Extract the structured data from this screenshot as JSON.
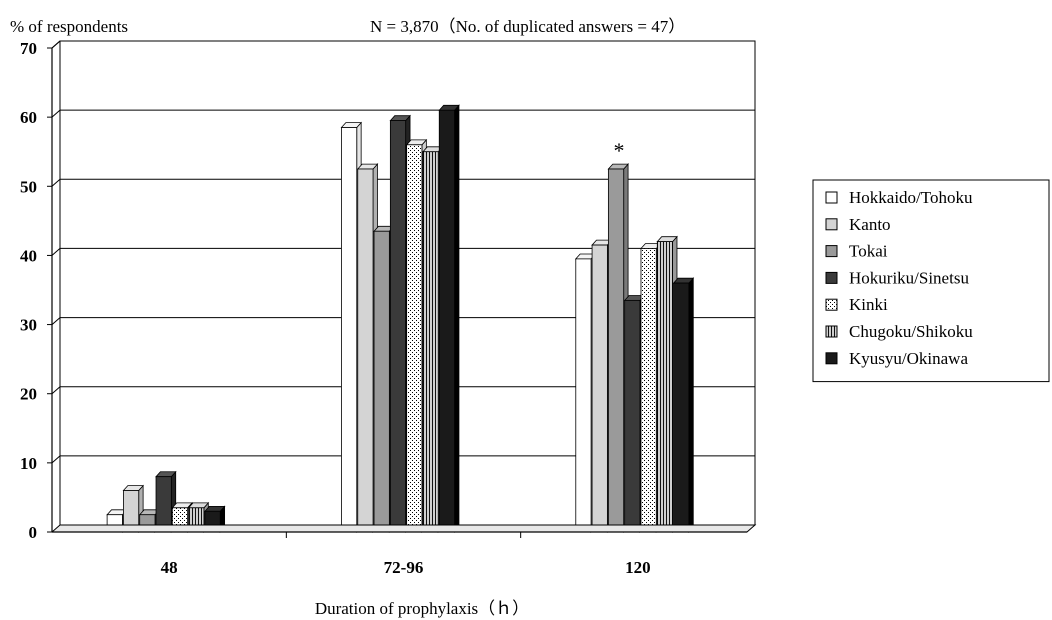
{
  "chart_data": {
    "type": "bar",
    "ylabel": "% of respondents",
    "annotation": "N = 3,870（No. of duplicated answers = 47）",
    "xlabel": "Duration of prophylaxis（ｈ）",
    "categories": [
      "48",
      "72-96",
      "120"
    ],
    "ylim": [
      0,
      70
    ],
    "yticks": [
      0,
      10,
      20,
      30,
      40,
      50,
      60,
      70
    ],
    "grid": true,
    "legend_position": "right",
    "marker": {
      "text": "*",
      "category": "120",
      "series": "Tokai"
    },
    "series": [
      {
        "name": "Hokkaido/Tohoku",
        "values": [
          2.5,
          58.5,
          39.5
        ],
        "pattern": "white"
      },
      {
        "name": "Kanto",
        "values": [
          6.0,
          52.5,
          41.5
        ],
        "pattern": "lightgray"
      },
      {
        "name": "Tokai",
        "values": [
          2.5,
          43.5,
          52.5
        ],
        "pattern": "gray"
      },
      {
        "name": "Hokuriku/Sinetsu",
        "values": [
          8.0,
          59.5,
          33.5
        ],
        "pattern": "darkgray"
      },
      {
        "name": "Kinki",
        "values": [
          3.5,
          56.0,
          41.0
        ],
        "pattern": "dotted"
      },
      {
        "name": "Chugoku/Shikoku",
        "values": [
          3.5,
          55.0,
          42.0
        ],
        "pattern": "vlines"
      },
      {
        "name": "Kyusyu/Okinawa",
        "values": [
          3.0,
          61.0,
          36.0
        ],
        "pattern": "black"
      }
    ]
  }
}
